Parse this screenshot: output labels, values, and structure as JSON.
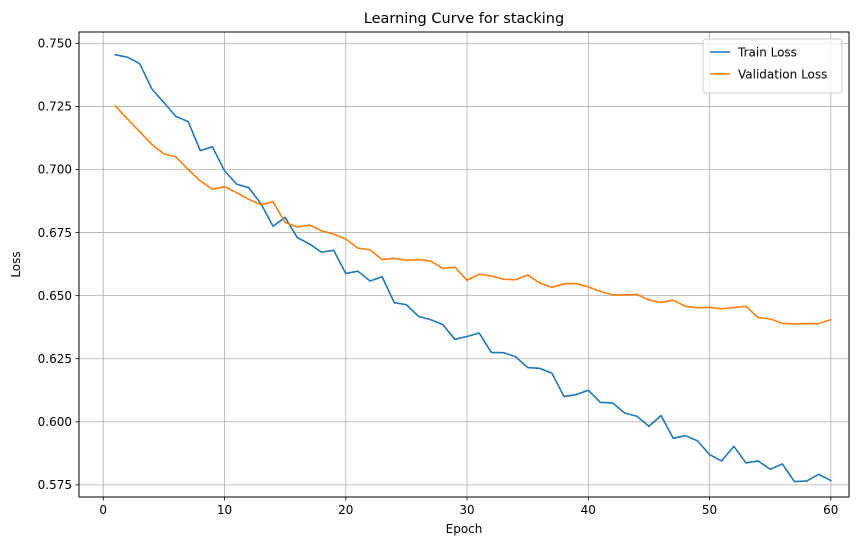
{
  "chart_data": {
    "type": "line",
    "title": "Learning Curve for stacking",
    "xlabel": "Epoch",
    "ylabel": "Loss",
    "xlim": [
      -2,
      61.5
    ],
    "ylim": [
      0.5702,
      0.7545
    ],
    "xticks": [
      0,
      10,
      20,
      30,
      40,
      50,
      60
    ],
    "yticks": [
      0.575,
      0.6,
      0.625,
      0.65,
      0.675,
      0.7,
      0.725,
      0.75
    ],
    "ytick_labels": [
      "0.575",
      "0.600",
      "0.625",
      "0.650",
      "0.675",
      "0.700",
      "0.725",
      "0.750"
    ],
    "grid": true,
    "legend_position": "top-right",
    "x": [
      1,
      2,
      3,
      4,
      5,
      6,
      7,
      8,
      9,
      10,
      11,
      12,
      13,
      14,
      15,
      16,
      17,
      18,
      19,
      20,
      21,
      22,
      23,
      24,
      25,
      26,
      27,
      28,
      29,
      30,
      31,
      32,
      33,
      34,
      35,
      36,
      37,
      38,
      39,
      40,
      41,
      42,
      43,
      44,
      45,
      46,
      47,
      48,
      49,
      50,
      51,
      52,
      53,
      54,
      55,
      56,
      57,
      58,
      59,
      60
    ],
    "series": [
      {
        "name": "Train Loss",
        "color": "#1f77b4",
        "values": [
          0.7455,
          0.7445,
          0.742,
          0.732,
          0.7265,
          0.721,
          0.719,
          0.7075,
          0.709,
          0.6995,
          0.6942,
          0.6928,
          0.6865,
          0.6775,
          0.681,
          0.673,
          0.6705,
          0.6672,
          0.668,
          0.6588,
          0.6597,
          0.6558,
          0.6575,
          0.6472,
          0.6464,
          0.6418,
          0.6405,
          0.6385,
          0.6327,
          0.6338,
          0.6352,
          0.6275,
          0.6274,
          0.6258,
          0.6215,
          0.6212,
          0.6193,
          0.61,
          0.6108,
          0.6125,
          0.6077,
          0.6075,
          0.6035,
          0.6022,
          0.5982,
          0.6025,
          0.5935,
          0.5945,
          0.5925,
          0.587,
          0.5845,
          0.5903,
          0.5837,
          0.5845,
          0.5812,
          0.5833,
          0.5763,
          0.5765,
          0.5792,
          0.5767
        ]
      },
      {
        "name": "Validation Loss",
        "color": "#ff7f0e",
        "values": [
          0.7252,
          0.72,
          0.715,
          0.71,
          0.7062,
          0.705,
          0.7,
          0.6955,
          0.6922,
          0.6932,
          0.6908,
          0.6882,
          0.686,
          0.6872,
          0.679,
          0.6772,
          0.678,
          0.6757,
          0.6744,
          0.6724,
          0.6688,
          0.6682,
          0.6643,
          0.6648,
          0.664,
          0.6643,
          0.6637,
          0.6608,
          0.6613,
          0.6561,
          0.6585,
          0.6578,
          0.6565,
          0.6563,
          0.6582,
          0.655,
          0.6533,
          0.6547,
          0.6548,
          0.6535,
          0.6517,
          0.6503,
          0.6503,
          0.6505,
          0.6483,
          0.6473,
          0.6482,
          0.6458,
          0.6452,
          0.6454,
          0.6448,
          0.6453,
          0.6458,
          0.6413,
          0.6408,
          0.639,
          0.6388,
          0.6389,
          0.6389,
          0.6405
        ]
      }
    ]
  }
}
